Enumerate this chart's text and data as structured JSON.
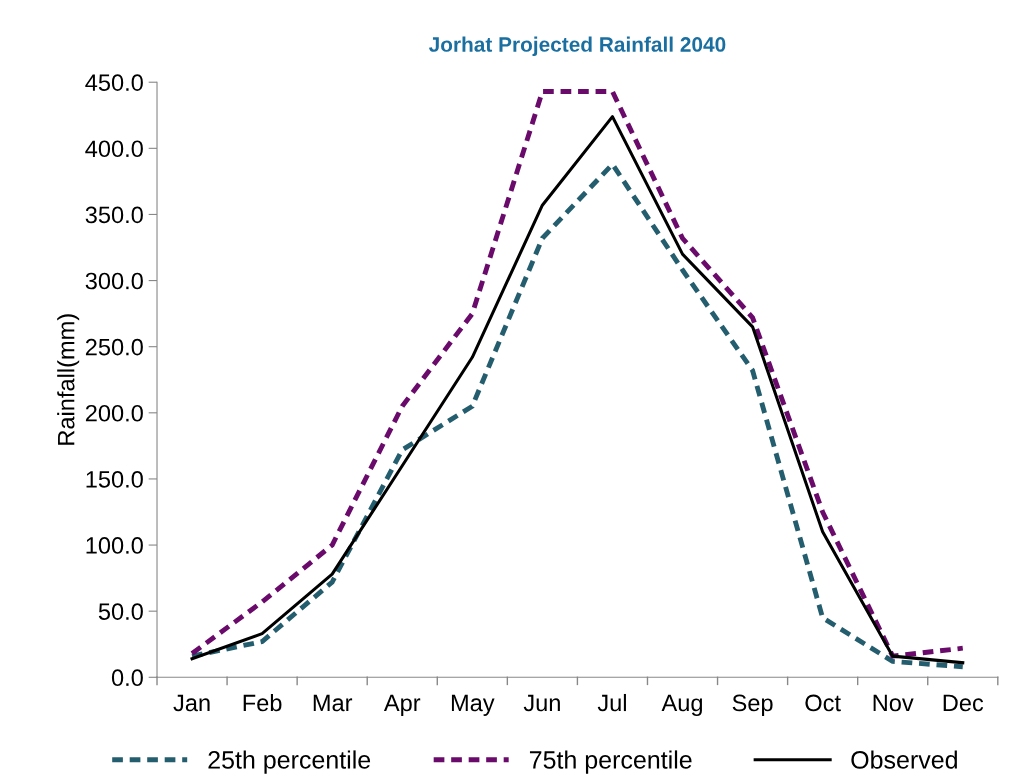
{
  "chart_data": {
    "type": "line",
    "title": "Jorhat Projected Rainfall 2040",
    "ylabel": "Rainfall(mm)",
    "categories": [
      "Jan",
      "Feb",
      "Mar",
      "Apr",
      "May",
      "Jun",
      "Jul",
      "Aug",
      "Sep",
      "Oct",
      "Nov",
      "Dec"
    ],
    "series": [
      {
        "name": "25th percentile",
        "color": "#245e6e",
        "line_style": "dashed",
        "values": [
          16,
          27,
          72,
          172,
          205,
          332,
          388,
          308,
          232,
          45,
          12,
          8
        ]
      },
      {
        "name": "75th percentile",
        "color": "#6a0a6b",
        "line_style": "dashed",
        "values": [
          18,
          57,
          100,
          205,
          275,
          443,
          443,
          332,
          272,
          125,
          16,
          22
        ]
      },
      {
        "name": "Observed",
        "color": "#000000",
        "line_style": "solid",
        "values": [
          14,
          33,
          78,
          160,
          242,
          357,
          424,
          320,
          265,
          110,
          16,
          11
        ]
      }
    ],
    "ylim": [
      0,
      450
    ],
    "yticks": [
      {
        "value": 0,
        "label": "0.0"
      },
      {
        "value": 50,
        "label": "50.0"
      },
      {
        "value": 100,
        "label": "100.0"
      },
      {
        "value": 150,
        "label": "150.0"
      },
      {
        "value": 200,
        "label": "200.0"
      },
      {
        "value": 250,
        "label": "250.0"
      },
      {
        "value": 300,
        "label": "300.0"
      },
      {
        "value": 350,
        "label": "350.0"
      },
      {
        "value": 400,
        "label": "400.0"
      },
      {
        "value": 450,
        "label": "450.0"
      }
    ],
    "grid": false,
    "legend": "bottom",
    "marker": "none"
  }
}
